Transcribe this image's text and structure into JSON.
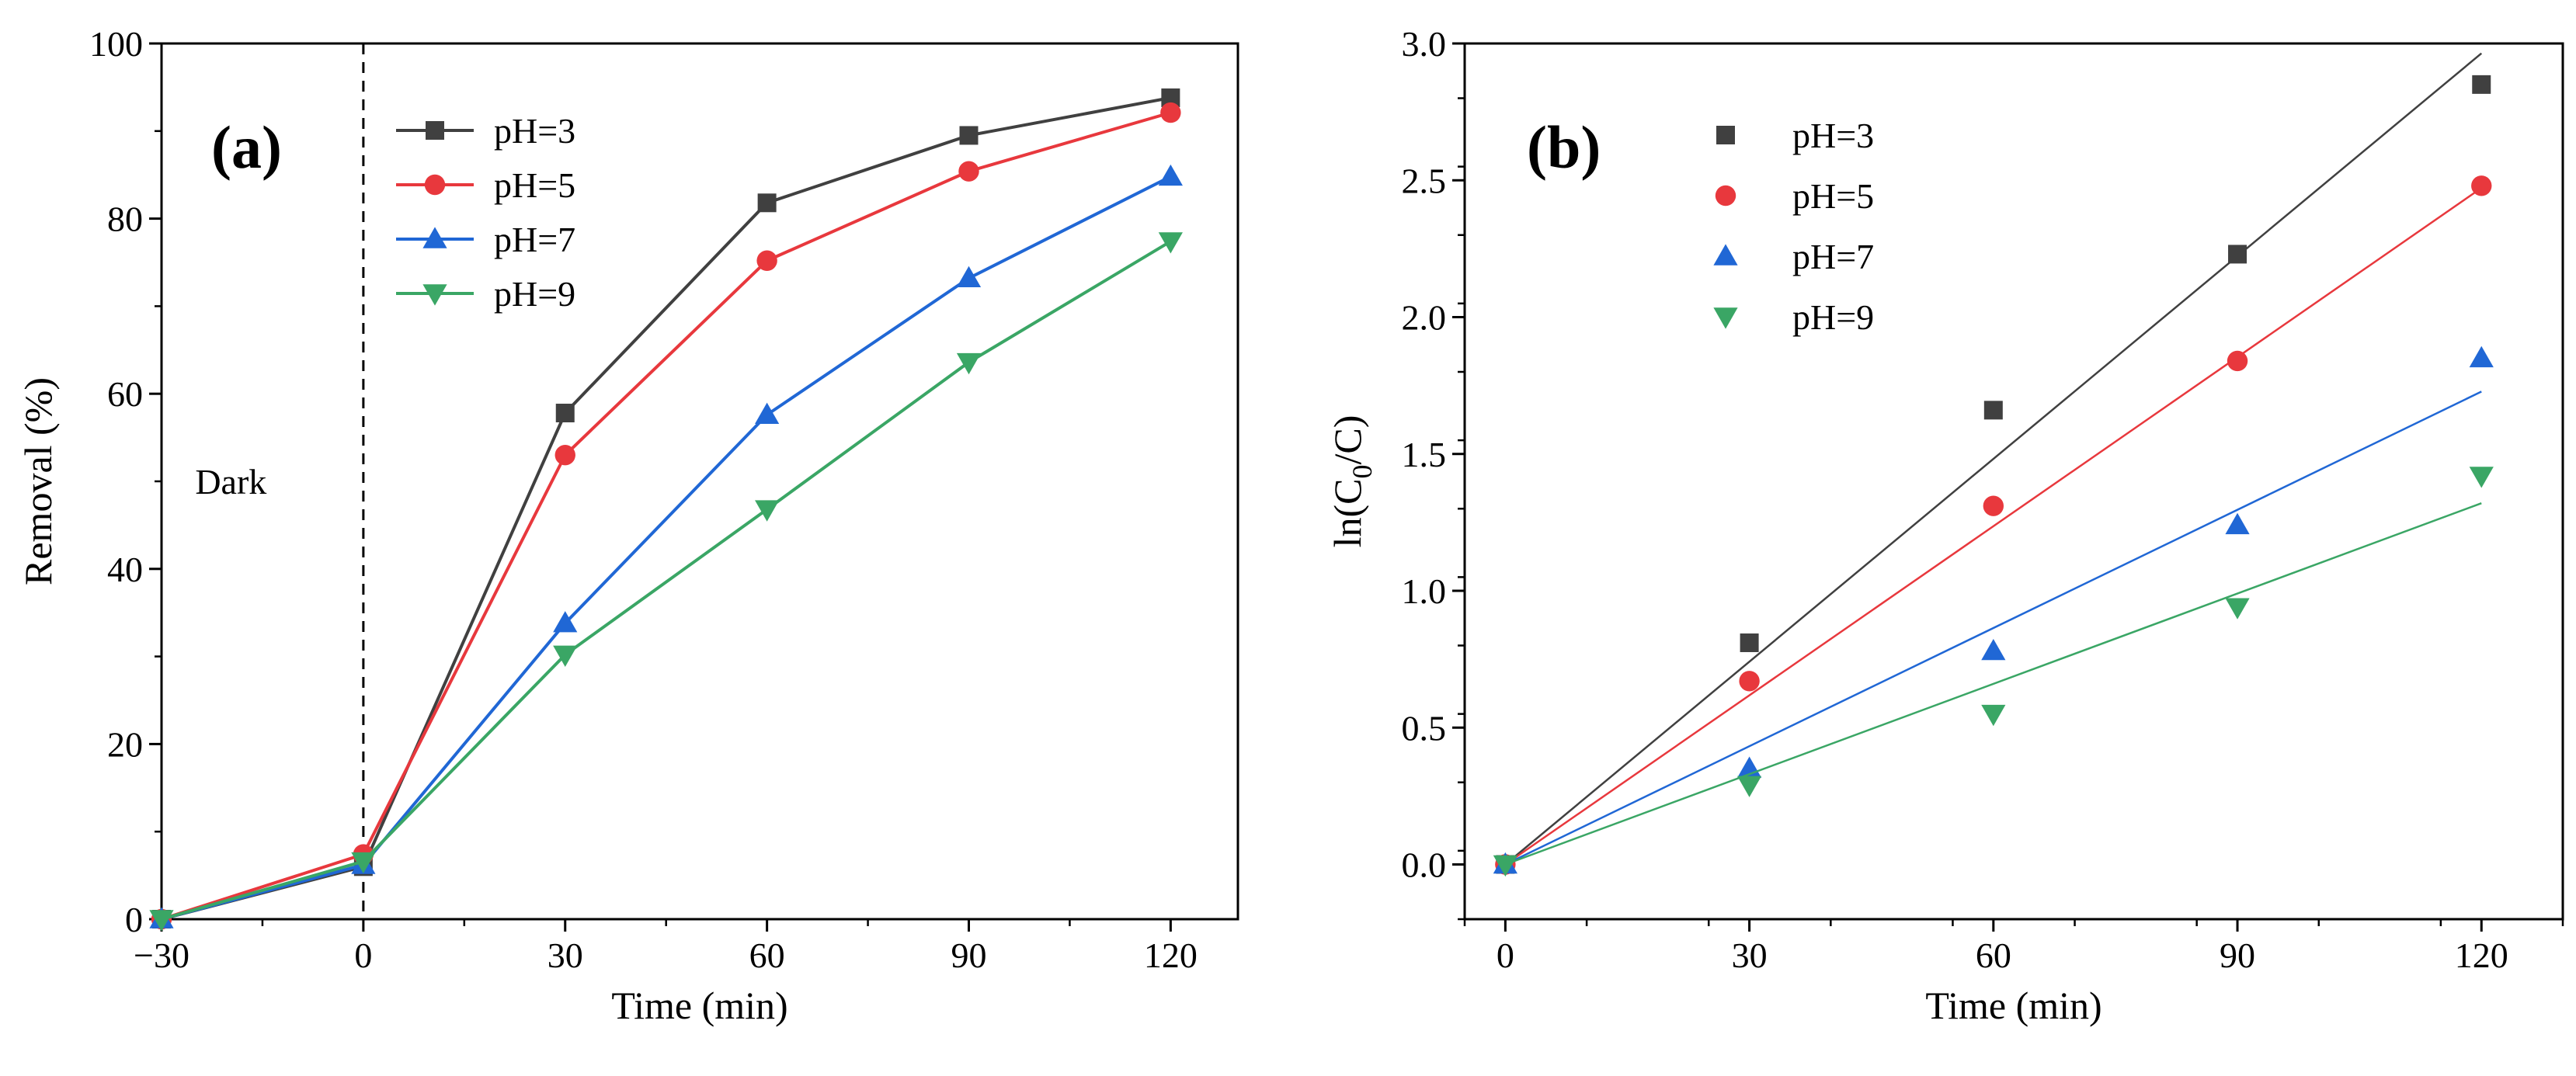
{
  "chart_data": [
    {
      "type": "line",
      "panel_label": "(a)",
      "xlabel": "Time (min)",
      "ylabel": "Removal (%)",
      "xlim": [
        -30,
        130
      ],
      "ylim": [
        0,
        100
      ],
      "xticks": [
        -30,
        0,
        30,
        60,
        90,
        120
      ],
      "xtick_labels": [
        "−30",
        "0",
        "30",
        "60",
        "90",
        "120"
      ],
      "yticks": [
        0,
        20,
        40,
        60,
        80,
        100
      ],
      "ytick_labels": [
        "0",
        "20",
        "40",
        "60",
        "80",
        "100"
      ],
      "annotation": "Dark",
      "dark_boundary_x": 0,
      "grid": false,
      "legend_position": "top-left",
      "x": [
        -30,
        0,
        30,
        60,
        90,
        120
      ],
      "series": [
        {
          "name": "pH=3",
          "marker": "square",
          "color": "#404040",
          "values": [
            0,
            6.0,
            57.8,
            81.8,
            89.5,
            93.8
          ]
        },
        {
          "name": "pH=5",
          "marker": "circle",
          "color": "#e8383d",
          "values": [
            0,
            7.4,
            53.0,
            75.2,
            85.4,
            92.1
          ]
        },
        {
          "name": "pH=7",
          "marker": "triangle-up",
          "color": "#2067d5",
          "values": [
            0,
            6.2,
            33.8,
            57.6,
            73.2,
            84.8
          ]
        },
        {
          "name": "pH=9",
          "marker": "triangle-down",
          "color": "#3aa665",
          "values": [
            0,
            6.6,
            30.2,
            46.8,
            63.6,
            77.4
          ]
        }
      ]
    },
    {
      "type": "scatter",
      "panel_label": "(b)",
      "xlabel": "Time (min)",
      "ylabel": "ln(C0/C)",
      "ylabel_parts": {
        "pre": "ln(C",
        "sub": "0",
        "post": "/C)"
      },
      "xlim": [
        -5,
        130
      ],
      "ylim": [
        -0.2,
        3.0
      ],
      "xticks": [
        0,
        30,
        60,
        90,
        120
      ],
      "xtick_labels": [
        "0",
        "30",
        "60",
        "90",
        "120"
      ],
      "yticks": [
        0.0,
        0.5,
        1.0,
        1.5,
        2.0,
        2.5,
        3.0
      ],
      "ytick_labels": [
        "0.0",
        "0.5",
        "1.0",
        "1.5",
        "2.0",
        "2.5",
        "3.0"
      ],
      "grid": false,
      "legend_position": "top-left",
      "x": [
        0,
        30,
        60,
        90,
        120
      ],
      "series": [
        {
          "name": "pH=3",
          "marker": "square",
          "color": "#404040",
          "values": [
            0,
            0.81,
            1.66,
            2.23,
            2.85
          ],
          "fit_slope": 0.0247
        },
        {
          "name": "pH=5",
          "marker": "circle",
          "color": "#e8383d",
          "values": [
            0,
            0.67,
            1.31,
            1.84,
            2.48
          ],
          "fit_slope": 0.0206
        },
        {
          "name": "pH=7",
          "marker": "triangle-up",
          "color": "#2067d5",
          "values": [
            0,
            0.35,
            0.78,
            1.24,
            1.85
          ],
          "fit_slope": 0.0144
        },
        {
          "name": "pH=9",
          "marker": "triangle-down",
          "color": "#3aa665",
          "values": [
            0,
            0.29,
            0.55,
            0.94,
            1.42
          ],
          "fit_slope": 0.011
        }
      ]
    }
  ]
}
